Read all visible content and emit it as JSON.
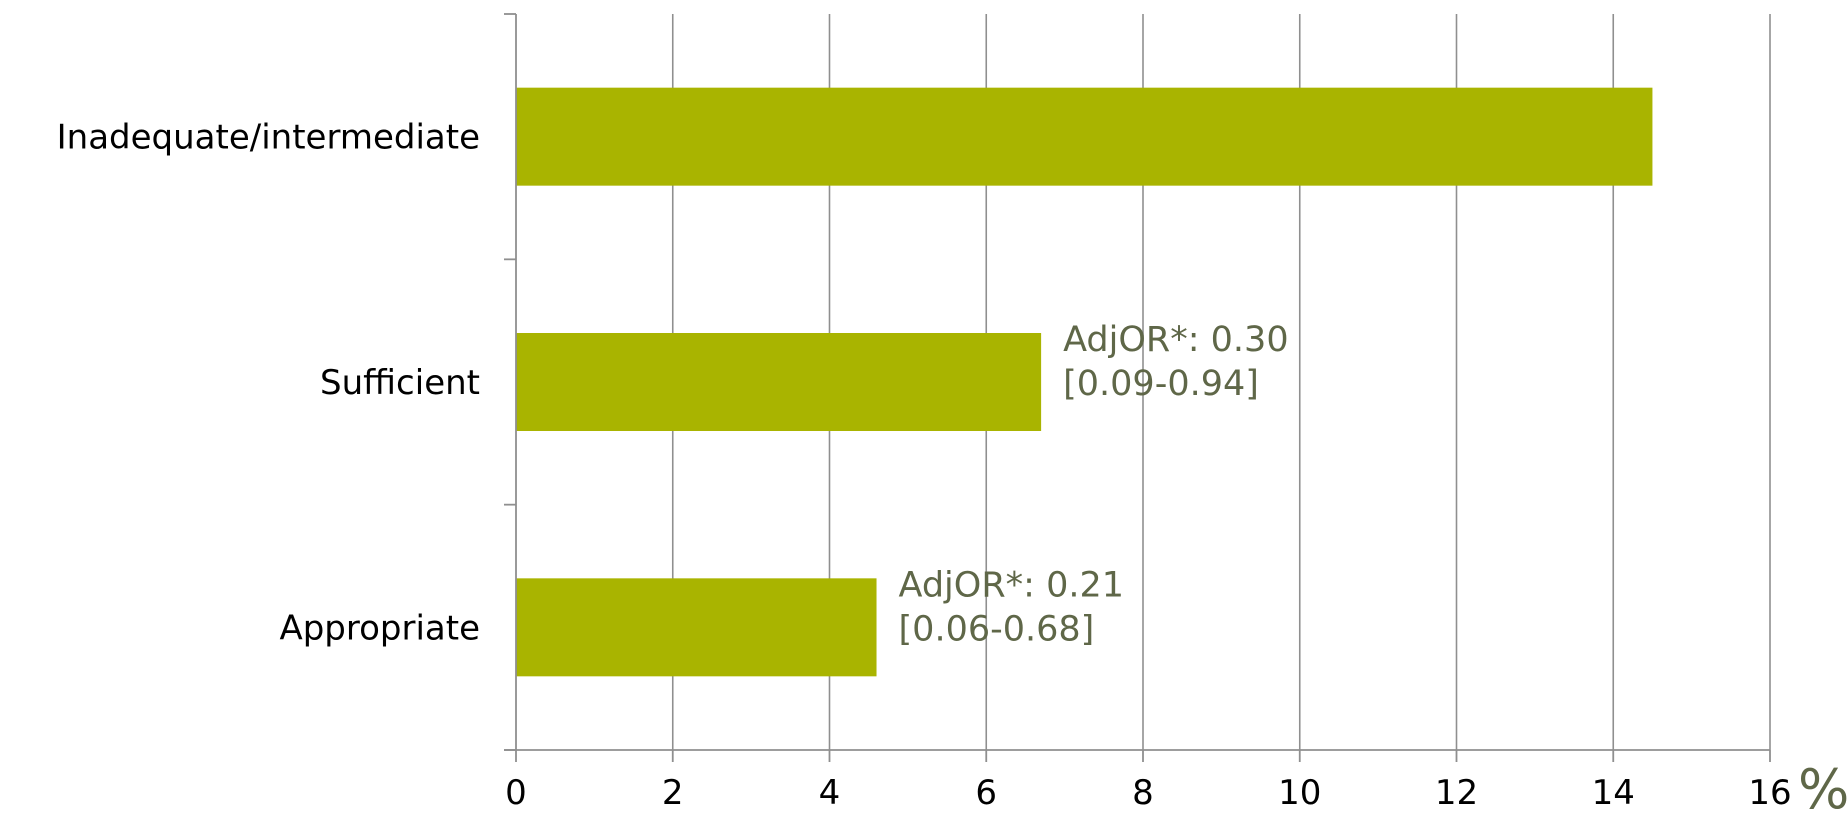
{
  "chart_data": {
    "type": "bar",
    "orientation": "horizontal",
    "categories": [
      "Inadequate/intermediate",
      "Sufficient",
      "Appropriate"
    ],
    "values": [
      14.5,
      6.7,
      4.6
    ],
    "xlim": [
      0,
      16
    ],
    "xticks": [
      0,
      2,
      4,
      6,
      8,
      10,
      12,
      14,
      16
    ],
    "xunit_label": "%",
    "grid": true,
    "annotations": [
      {
        "category": "Sufficient",
        "lines": [
          "AdjOR*: 0.30",
          "[0.09-0.94]"
        ]
      },
      {
        "category": "Appropriate",
        "lines": [
          "AdjOR*: 0.21",
          "[0.06-0.68]"
        ]
      }
    ],
    "colors": {
      "bar": "#a9b400",
      "annotation": "#5f6748",
      "grid": "#8f8f8f",
      "text": "#000000"
    }
  }
}
